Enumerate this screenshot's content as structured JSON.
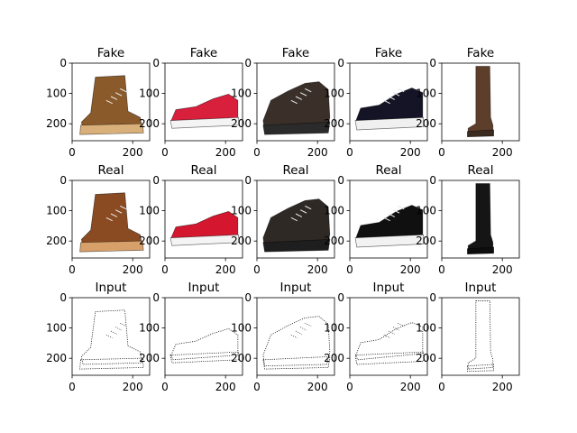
{
  "figure": {
    "rows": [
      {
        "title": "Fake"
      },
      {
        "title": "Real"
      },
      {
        "title": "Input"
      }
    ],
    "panels": [
      [
        {
          "shoe": "work boot",
          "color": "#8b5a2b",
          "sole": "#d9b07a"
        },
        {
          "shoe": "slip-on sneaker",
          "color": "#d81f3c",
          "sole": "#f4f4f4"
        },
        {
          "shoe": "work shoe",
          "color": "#3a2f29",
          "sole": "#2b2b2b"
        },
        {
          "shoe": "sneaker",
          "color": "#141426",
          "sole": "#f0f0f0"
        },
        {
          "shoe": "tall boot",
          "color": "#5c3e2a",
          "sole": "#3b2a20"
        }
      ],
      [
        {
          "shoe": "work boot",
          "color": "#8a4b23",
          "sole": "#d7a06a"
        },
        {
          "shoe": "slip-on sneaker",
          "color": "#d4162e",
          "sole": "#f4f4f4"
        },
        {
          "shoe": "work shoe",
          "color": "#2f2926",
          "sole": "#1e1e1e"
        },
        {
          "shoe": "sneaker",
          "color": "#101010",
          "sole": "#f2f2f2"
        },
        {
          "shoe": "tall boot",
          "color": "#151515",
          "sole": "#0d0d0d"
        }
      ],
      [
        {
          "shoe": "boot sketch",
          "color": "#000000",
          "sole": "#000000"
        },
        {
          "shoe": "slip-on sketch",
          "color": "#000000",
          "sole": "#000000"
        },
        {
          "shoe": "shoe sketch",
          "color": "#000000",
          "sole": "#000000"
        },
        {
          "shoe": "sneaker sketch",
          "color": "#000000",
          "sole": "#000000"
        },
        {
          "shoe": "tall boot sketch",
          "color": "#000000",
          "sole": "#000000"
        }
      ]
    ],
    "xticks": [
      "0",
      "200"
    ],
    "yticks": [
      "0",
      "100",
      "200"
    ]
  }
}
